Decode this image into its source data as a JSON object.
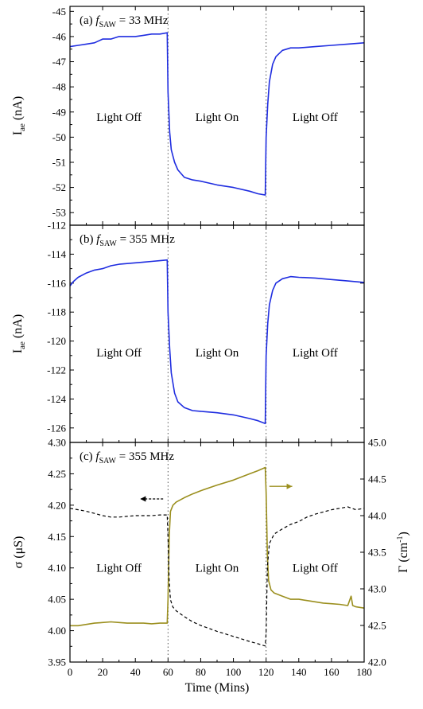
{
  "chart_data": [
    {
      "type": "line",
      "panel_label": "(a)",
      "freq_label": {
        "symbol": "f",
        "subscript": "SAW",
        "value": " = 33 MHz"
      },
      "ylabel": {
        "main": "I",
        "sub": "ae",
        "unit": " (nA)"
      },
      "xlim": [
        0,
        180
      ],
      "ylim": [
        -53.5,
        -44.8
      ],
      "yticks": [
        -53,
        -52,
        -51,
        -50,
        -49,
        -48,
        -47,
        -46,
        -45
      ],
      "ytick_labels": [
        "-53",
        "-52",
        "-51",
        "-50",
        "-49",
        "-48",
        "-47",
        "-46",
        "-45"
      ],
      "color": "#1f2de0",
      "regions": [
        {
          "label": "Light Off",
          "x": 30,
          "y": -49.2
        },
        {
          "label": "Light On",
          "x": 90,
          "y": -49.2
        },
        {
          "label": "Light Off",
          "x": 150,
          "y": -49.2
        }
      ],
      "vlines": [
        60,
        120
      ],
      "series": [
        {
          "x": [
            0,
            5,
            10,
            15,
            20,
            25,
            30,
            35,
            40,
            45,
            50,
            55,
            59.5,
            60,
            61,
            62,
            64,
            66,
            70,
            75,
            80,
            90,
            100,
            110,
            115,
            119.5,
            120,
            121,
            122,
            124,
            126,
            130,
            135,
            140,
            150,
            160,
            170,
            180
          ],
          "y": [
            -46.4,
            -46.35,
            -46.3,
            -46.25,
            -46.1,
            -46.1,
            -46.0,
            -46.0,
            -46.0,
            -45.95,
            -45.9,
            -45.9,
            -45.85,
            -48.2,
            -49.8,
            -50.5,
            -51.0,
            -51.3,
            -51.6,
            -51.7,
            -51.75,
            -51.9,
            -52.0,
            -52.15,
            -52.25,
            -52.3,
            -50.0,
            -48.7,
            -47.8,
            -47.1,
            -46.8,
            -46.55,
            -46.45,
            -46.45,
            -46.4,
            -46.35,
            -46.3,
            -46.25
          ]
        }
      ]
    },
    {
      "type": "line",
      "panel_label": "(b)",
      "freq_label": {
        "symbol": "f",
        "subscript": "SAW",
        "value": " = 355 MHz"
      },
      "ylabel": {
        "main": "I",
        "sub": "ae",
        "unit": " (nA)"
      },
      "xlim": [
        0,
        180
      ],
      "ylim": [
        -127,
        -112
      ],
      "yticks": [
        -126,
        -124,
        -122,
        -120,
        -118,
        -116,
        -114,
        -112
      ],
      "ytick_labels": [
        "-126",
        "-124",
        "-122",
        "-120",
        "-118",
        "-116",
        "-114",
        "-112"
      ],
      "color": "#1f2de0",
      "regions": [
        {
          "label": "Light Off",
          "x": 30,
          "y": -120.8
        },
        {
          "label": "Light On",
          "x": 90,
          "y": -120.8
        },
        {
          "label": "Light Off",
          "x": 150,
          "y": -120.8
        }
      ],
      "vlines": [
        60,
        120
      ],
      "series": [
        {
          "x": [
            0,
            2,
            5,
            10,
            15,
            20,
            25,
            30,
            35,
            40,
            45,
            50,
            55,
            59.5,
            60,
            61,
            62,
            64,
            66,
            70,
            75,
            80,
            90,
            100,
            110,
            115,
            119.5,
            120,
            121,
            122,
            124,
            126,
            130,
            135,
            140,
            150,
            160,
            170,
            180
          ],
          "y": [
            -116.2,
            -115.9,
            -115.6,
            -115.3,
            -115.1,
            -115.0,
            -114.8,
            -114.7,
            -114.65,
            -114.6,
            -114.55,
            -114.5,
            -114.45,
            -114.4,
            -118.0,
            -120.5,
            -122.2,
            -123.6,
            -124.2,
            -124.6,
            -124.8,
            -124.85,
            -124.95,
            -125.1,
            -125.35,
            -125.5,
            -125.7,
            -121.0,
            -118.8,
            -117.5,
            -116.5,
            -116.0,
            -115.7,
            -115.55,
            -115.6,
            -115.65,
            -115.75,
            -115.85,
            -115.95
          ]
        }
      ]
    },
    {
      "type": "line",
      "panel_label": "(c)",
      "freq_label": {
        "symbol": "f",
        "subscript": "SAW",
        "value": " = 355 MHz"
      },
      "ylabel": {
        "main": "σ",
        "sub": "",
        "unit": " (μS)"
      },
      "ylabel_right": {
        "main": "Γ (cm",
        "sup": "-1",
        "close": ")"
      },
      "xlabel": "Time (Mins)",
      "xlim": [
        0,
        180
      ],
      "xticks": [
        0,
        20,
        40,
        60,
        80,
        100,
        120,
        140,
        160,
        180
      ],
      "xtick_labels": [
        "0",
        "20",
        "40",
        "60",
        "80",
        "100",
        "120",
        "140",
        "160",
        "180"
      ],
      "ylim": [
        3.95,
        4.3
      ],
      "yticks": [
        3.95,
        4.0,
        4.05,
        4.1,
        4.15,
        4.2,
        4.25,
        4.3
      ],
      "ytick_labels": [
        "3.95",
        "4.00",
        "4.05",
        "4.10",
        "4.15",
        "4.20",
        "4.25",
        "4.30"
      ],
      "ylim_right": [
        42.0,
        45.0
      ],
      "yticks_right": [
        42.0,
        42.5,
        43.0,
        43.5,
        44.0,
        44.5,
        45.0
      ],
      "ytick_labels_right": [
        "42.0",
        "42.5",
        "43.0",
        "43.5",
        "44.0",
        "44.5",
        "45.0"
      ],
      "regions": [
        {
          "label": "Light Off",
          "x": 30,
          "y": 4.1
        },
        {
          "label": "Light On",
          "x": 90,
          "y": 4.1
        },
        {
          "label": "Light Off",
          "x": 150,
          "y": 4.1
        }
      ],
      "vlines": [
        60,
        120
      ],
      "arrows": [
        {
          "direction": "left",
          "x_from": 57,
          "x_to": 43,
          "y": 4.21,
          "color": "#000000"
        },
        {
          "direction": "right",
          "x_from": 122,
          "x_to": 136,
          "y": 4.23,
          "color": "#9b8f1e"
        }
      ],
      "series": [
        {
          "axis": "left",
          "style": "solid",
          "color": "#9b8f1e",
          "x": [
            0,
            5,
            10,
            15,
            20,
            25,
            30,
            35,
            40,
            45,
            50,
            55,
            59.5,
            60,
            60.7,
            61.5,
            63,
            65,
            70,
            75,
            80,
            90,
            100,
            110,
            115,
            119.5,
            120,
            120.8,
            121.5,
            123,
            125,
            130,
            135,
            140,
            145,
            150,
            155,
            160,
            165,
            170,
            172,
            173,
            175,
            180
          ],
          "y": [
            4.008,
            4.008,
            4.01,
            4.012,
            4.013,
            4.014,
            4.013,
            4.012,
            4.012,
            4.012,
            4.011,
            4.012,
            4.012,
            4.05,
            4.15,
            4.19,
            4.2,
            4.205,
            4.212,
            4.218,
            4.223,
            4.232,
            4.24,
            4.25,
            4.255,
            4.26,
            4.22,
            4.12,
            4.08,
            4.065,
            4.06,
            4.055,
            4.05,
            4.05,
            4.048,
            4.046,
            4.044,
            4.043,
            4.042,
            4.04,
            4.055,
            4.04,
            4.038,
            4.036
          ]
        },
        {
          "axis": "right",
          "style": "dashed",
          "color": "#000000",
          "x": [
            0,
            5,
            10,
            15,
            20,
            25,
            30,
            35,
            40,
            45,
            50,
            55,
            59.5,
            60,
            60.7,
            61.5,
            63,
            65,
            70,
            75,
            80,
            90,
            100,
            110,
            115,
            119.5,
            120,
            120.8,
            122,
            125,
            130,
            135,
            140,
            145,
            150,
            155,
            160,
            165,
            170,
            175,
            180
          ],
          "y": [
            44.1,
            44.08,
            44.06,
            44.03,
            44.0,
            43.98,
            43.98,
            43.99,
            44.0,
            44.0,
            44.0,
            44.01,
            44.01,
            43.7,
            43.1,
            42.85,
            42.75,
            42.7,
            42.62,
            42.55,
            42.5,
            42.42,
            42.35,
            42.28,
            42.25,
            42.22,
            42.4,
            43.3,
            43.62,
            43.75,
            43.82,
            43.88,
            43.92,
            43.98,
            44.02,
            44.05,
            44.08,
            44.1,
            44.12,
            44.08,
            44.1
          ]
        }
      ]
    }
  ]
}
